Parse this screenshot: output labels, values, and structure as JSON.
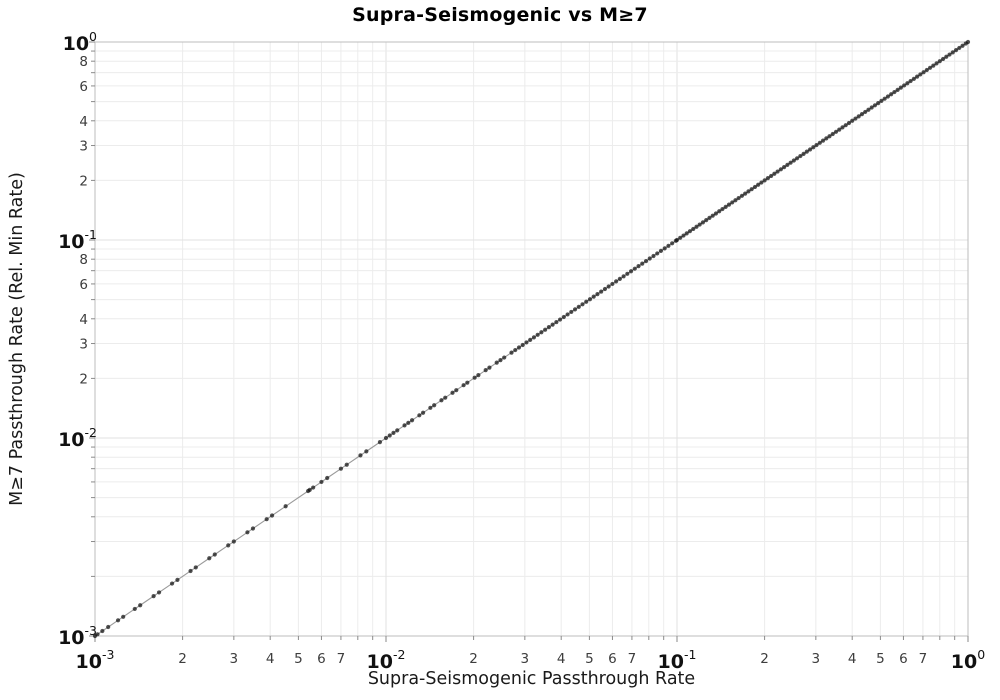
{
  "chart_data": {
    "type": "scatter",
    "mode": "lines+markers",
    "title": "Supra-Seismogenic vs M≥7",
    "xlabel": "Supra-Seismogenic Passthrough Rate",
    "ylabel": "M≥7 Passthrough Rate (Rel. Min Rate)",
    "xscale": "log",
    "yscale": "log",
    "xlim": [
      0.001,
      1.0
    ],
    "ylim": [
      0.001,
      1.0
    ],
    "grid": true,
    "legend": false,
    "relation": "All points lie on the identity line y = x; density increases toward 1.0 where markers merge into a solid black band",
    "x_major_exponents": [
      -3,
      -2,
      -1,
      0
    ],
    "y_major_exponents": [
      0,
      -1,
      -2,
      -3
    ],
    "x_minor_labeled_digits": [
      2,
      3,
      4,
      5,
      6,
      7
    ],
    "y_minor_labeled_digits": [
      8,
      6,
      4,
      3,
      2
    ],
    "points_x_equals_y": [
      0.001,
      0.00102,
      0.00106,
      0.00111,
      0.0012,
      0.00125,
      0.00137,
      0.00143,
      0.00159,
      0.00166,
      0.00184,
      0.00192,
      0.00213,
      0.00222,
      0.00247,
      0.00258,
      0.00287,
      0.003,
      0.00334,
      0.00349,
      0.00389,
      0.00406,
      0.00452,
      0.0054,
      0.00547,
      0.00562,
      0.006,
      0.00628,
      0.007,
      0.00733,
      0.00817,
      0.00856,
      0.00953,
      0.01,
      0.0103,
      0.01061,
      0.01093,
      0.01158,
      0.01193,
      0.01229,
      0.01302,
      0.01341,
      0.01421,
      0.01464,
      0.01551,
      0.01598,
      0.01693,
      0.01744,
      0.01848,
      0.01903,
      0.02017,
      0.02077,
      0.02201,
      0.02267,
      0.02402,
      0.02474,
      0.02548,
      0.027,
      0.02781,
      0.02864,
      0.0295,
      0.03039,
      0.0313,
      0.03224,
      0.03321,
      0.0342,
      0.03523,
      0.03629,
      0.03738,
      0.0385,
      0.03965,
      0.04084,
      0.04207,
      0.04333,
      0.04463,
      0.04597,
      0.04735,
      0.04877,
      0.05023,
      0.05174,
      0.05329,
      0.05489,
      0.05654,
      0.05823,
      0.05998,
      0.06178,
      0.06363,
      0.06554,
      0.06751,
      0.06953,
      0.07162,
      0.07377,
      0.07598,
      0.07826,
      0.08061,
      0.08303,
      0.08552,
      0.08808,
      0.09073,
      0.09345,
      0.09625,
      0.09914,
      0.1,
      0.1026,
      0.1053,
      0.108,
      0.1108,
      0.1137,
      0.1167,
      0.1197,
      0.1228,
      0.126,
      0.1293,
      0.1327,
      0.1361,
      0.1397,
      0.1433,
      0.147,
      0.1509,
      0.1548,
      0.1588,
      0.1629,
      0.1672,
      0.1715,
      0.176,
      0.1806,
      0.1853,
      0.1901,
      0.195,
      0.2001,
      0.2053,
      0.2106,
      0.2161,
      0.2217,
      0.2275,
      0.2334,
      0.2395,
      0.2457,
      0.2521,
      0.2586,
      0.2654,
      0.2723,
      0.2794,
      0.2866,
      0.2941,
      0.3017,
      0.3096,
      0.3176,
      0.3259,
      0.3343,
      0.343,
      0.3519,
      0.3611,
      0.3705,
      0.3801,
      0.39,
      0.4001,
      0.4105,
      0.4212,
      0.4322,
      0.4434,
      0.4549,
      0.4668,
      0.4789,
      0.4913,
      0.5041,
      0.5172,
      0.5307,
      0.5445,
      0.5586,
      0.5731,
      0.588,
      0.6033,
      0.619,
      0.6351,
      0.6516,
      0.6686,
      0.6859,
      0.7038,
      0.7221,
      0.7409,
      0.7601,
      0.7799,
      0.8002,
      0.821,
      0.8423,
      0.8642,
      0.8867,
      0.9098,
      0.9334,
      0.9577,
      0.9826,
      1.0
    ]
  },
  "style": {
    "marker_color": "#111111",
    "marker_opacity": 0.72,
    "line_color": "#8f8f8f",
    "grid_minor_color": "#ececec",
    "grid_major_color": "#e2e2e2",
    "frame_color": "#bdbdbd",
    "tick_color": "#8a8a8a",
    "major_tick_label_color": "#111111",
    "minor_tick_label_color": "#3d3d3d",
    "title_color": "#000000",
    "axis_label_color": "#1a1a1a",
    "background": "#ffffff"
  }
}
